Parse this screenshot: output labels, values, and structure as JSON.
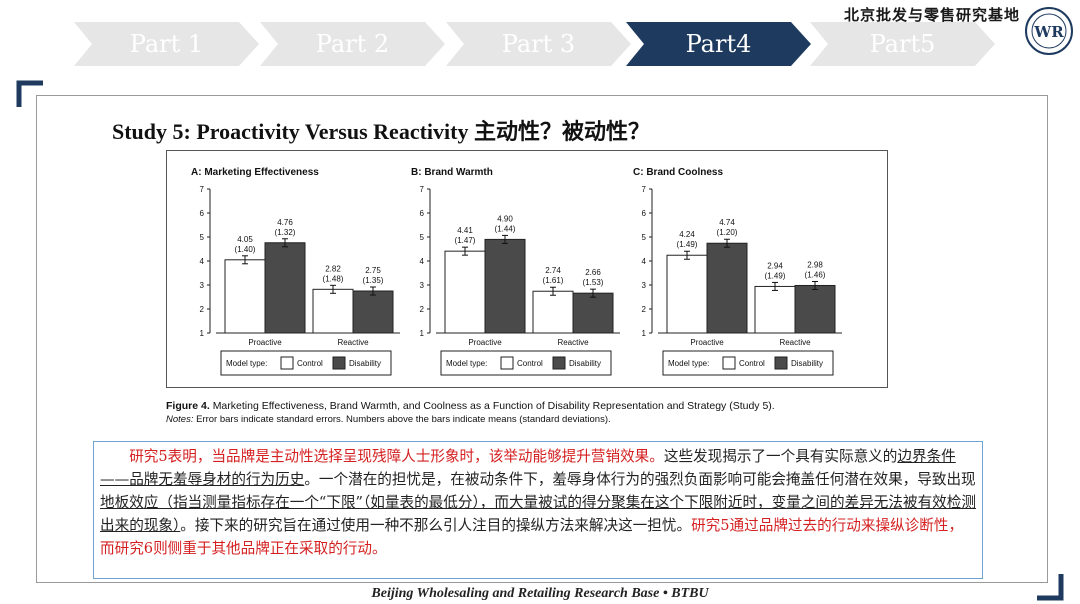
{
  "nav": {
    "tabs": [
      {
        "label": "Part 1",
        "active": false
      },
      {
        "label": "Part 2",
        "active": false
      },
      {
        "label": "Part 3",
        "active": false
      },
      {
        "label": "Part4",
        "active": true
      },
      {
        "label": "Part5",
        "active": false
      }
    ]
  },
  "brand": {
    "cn_name": "北京批发与零售研究基地",
    "logo_icon": "btbu-research-base-logo",
    "logo_text": "WR"
  },
  "colors": {
    "active_tab": "#1e3a5f",
    "inactive_tab": "#e6e6e6",
    "accent_red": "#d42020",
    "control_bar": "#ffffff",
    "disability_bar": "#4a4a4a"
  },
  "slide": {
    "title": "Study 5: Proactivity Versus Reactivity 主动性？被动性？"
  },
  "chart_data": [
    {
      "type": "bar",
      "title": "A: Marketing Effectiveness",
      "categories": [
        "Proactive",
        "Reactive"
      ],
      "series": [
        {
          "name": "Control",
          "values": [
            4.05,
            2.82
          ],
          "sd": [
            "(1.40)",
            "(1.48)"
          ],
          "labels": [
            "4.05",
            "2.82"
          ]
        },
        {
          "name": "Disability",
          "values": [
            4.76,
            2.75
          ],
          "sd": [
            "(1.32)",
            "(1.35)"
          ],
          "labels": [
            "4.76",
            "2.75"
          ]
        }
      ],
      "ylim": [
        1,
        7
      ],
      "yticks": [
        "1",
        "2",
        "3",
        "4",
        "5",
        "6",
        "7"
      ],
      "legend": {
        "title": "Model type:",
        "position": "bottom"
      }
    },
    {
      "type": "bar",
      "title": "B: Brand Warmth",
      "categories": [
        "Proactive",
        "Reactive"
      ],
      "series": [
        {
          "name": "Control",
          "values": [
            4.41,
            2.74
          ],
          "sd": [
            "(1.47)",
            "(1.61)"
          ],
          "labels": [
            "4.41",
            "2.74"
          ]
        },
        {
          "name": "Disability",
          "values": [
            4.9,
            2.66
          ],
          "sd": [
            "(1.44)",
            "(1.53)"
          ],
          "labels": [
            "4.90",
            "2.66"
          ]
        }
      ],
      "ylim": [
        1,
        7
      ],
      "yticks": [
        "1",
        "2",
        "3",
        "4",
        "5",
        "6",
        "7"
      ],
      "legend": {
        "title": "Model type:",
        "position": "bottom"
      }
    },
    {
      "type": "bar",
      "title": "C: Brand Coolness",
      "categories": [
        "Proactive",
        "Reactive"
      ],
      "series": [
        {
          "name": "Control",
          "values": [
            4.24,
            2.94
          ],
          "sd": [
            "(1.49)",
            "(1.49)"
          ],
          "labels": [
            "4.24",
            "2.94"
          ]
        },
        {
          "name": "Disability",
          "values": [
            4.74,
            2.98
          ],
          "sd": [
            "(1.20)",
            "(1.46)"
          ],
          "labels": [
            "4.74",
            "2.98"
          ]
        }
      ],
      "ylim": [
        1,
        7
      ],
      "yticks": [
        "1",
        "2",
        "3",
        "4",
        "5",
        "6",
        "7"
      ],
      "legend": {
        "title": "Model type:",
        "position": "bottom"
      }
    }
  ],
  "caption": {
    "label": "Figure 4.",
    "text": "Marketing Effectiveness, Brand Warmth, and Coolness as a Function of Disability Representation and Strategy (Study 5).",
    "notes_label": "Notes:",
    "notes_text": "Error bars indicate standard errors. Numbers above the bars indicate means (standard deviations)."
  },
  "summary": {
    "s1": "研究5表明，当品牌是主动性选择呈现残障人士形象时，该举动能够提升营销效果。",
    "s2": "这些发现揭示了一个具有实际意义的",
    "s3": "边界条件——品牌无羞辱身材的行为历史",
    "s4": "。一个潜在的担忧是，在被动条件下，羞辱身体行为的强烈负面影响可能会掩盖任何潜在效果，导致出现",
    "s5": "地板效应（指当测量指标存在一个“下限”（如量表的最低分），而大量被试的得分聚集在这个下限附近时，变量之间的差异无法被有效检测出来的现象）",
    "s6": "。接下来的研究旨在通过使用一种不那么引人注目的操纵方法来解决这一担忧。",
    "s7": "研究5通过品牌过去的行动来操纵诊断性，而研究6则侧重于其他品牌正在采取的行动。"
  },
  "footer": {
    "text": "Beijing Wholesaling and Retailing Research Base • BTBU"
  }
}
